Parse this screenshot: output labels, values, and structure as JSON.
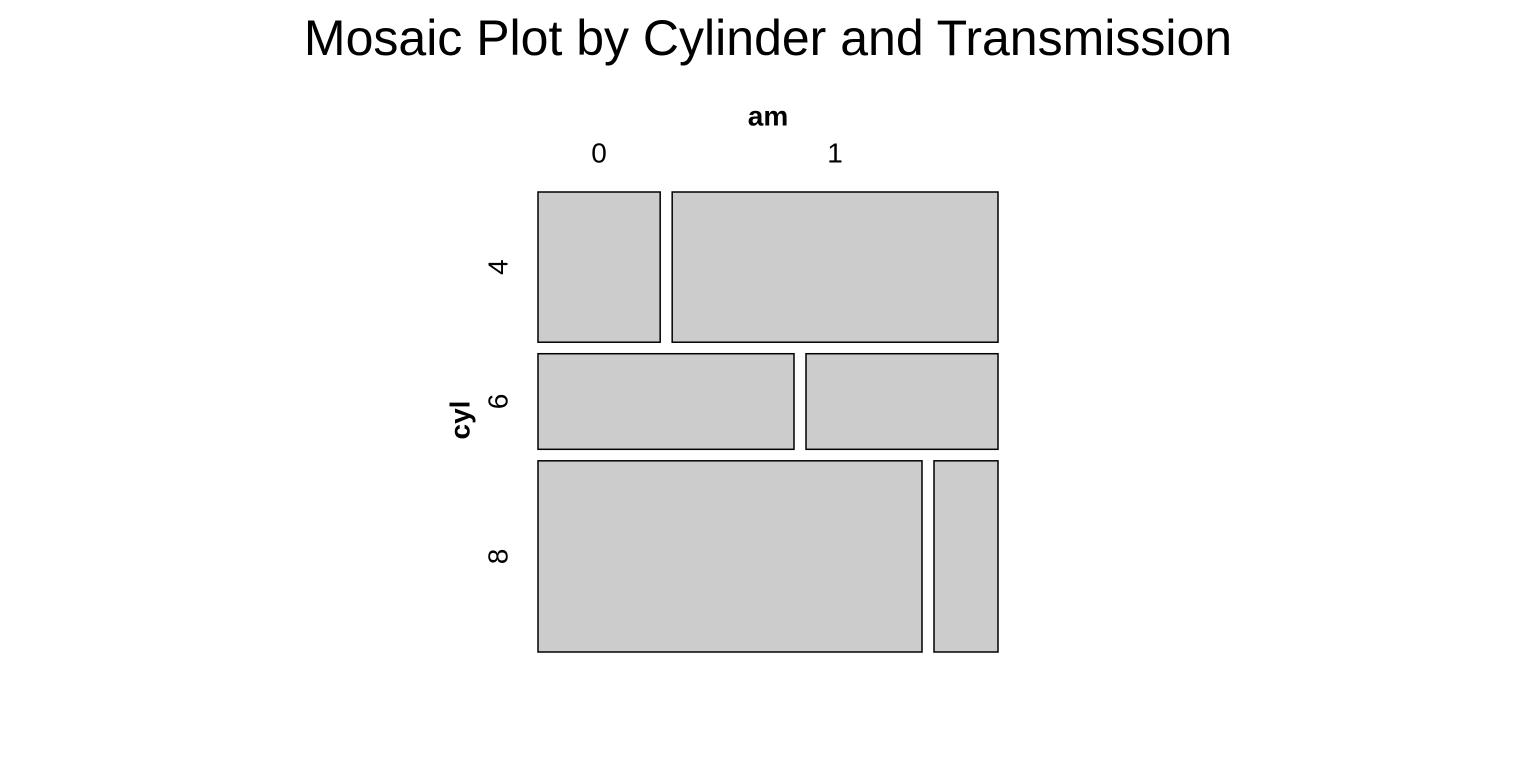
{
  "chart_data": {
    "type": "mosaic",
    "title": "Mosaic Plot by Cylinder and Transmission",
    "x_label": "am",
    "y_label": "cyl",
    "categories": [
      "4",
      "6",
      "8"
    ],
    "series": [
      {
        "name": "0",
        "values": [
          3,
          4,
          12
        ]
      },
      {
        "name": "1",
        "values": [
          8,
          3,
          2
        ]
      }
    ],
    "color": "#cccccc"
  }
}
